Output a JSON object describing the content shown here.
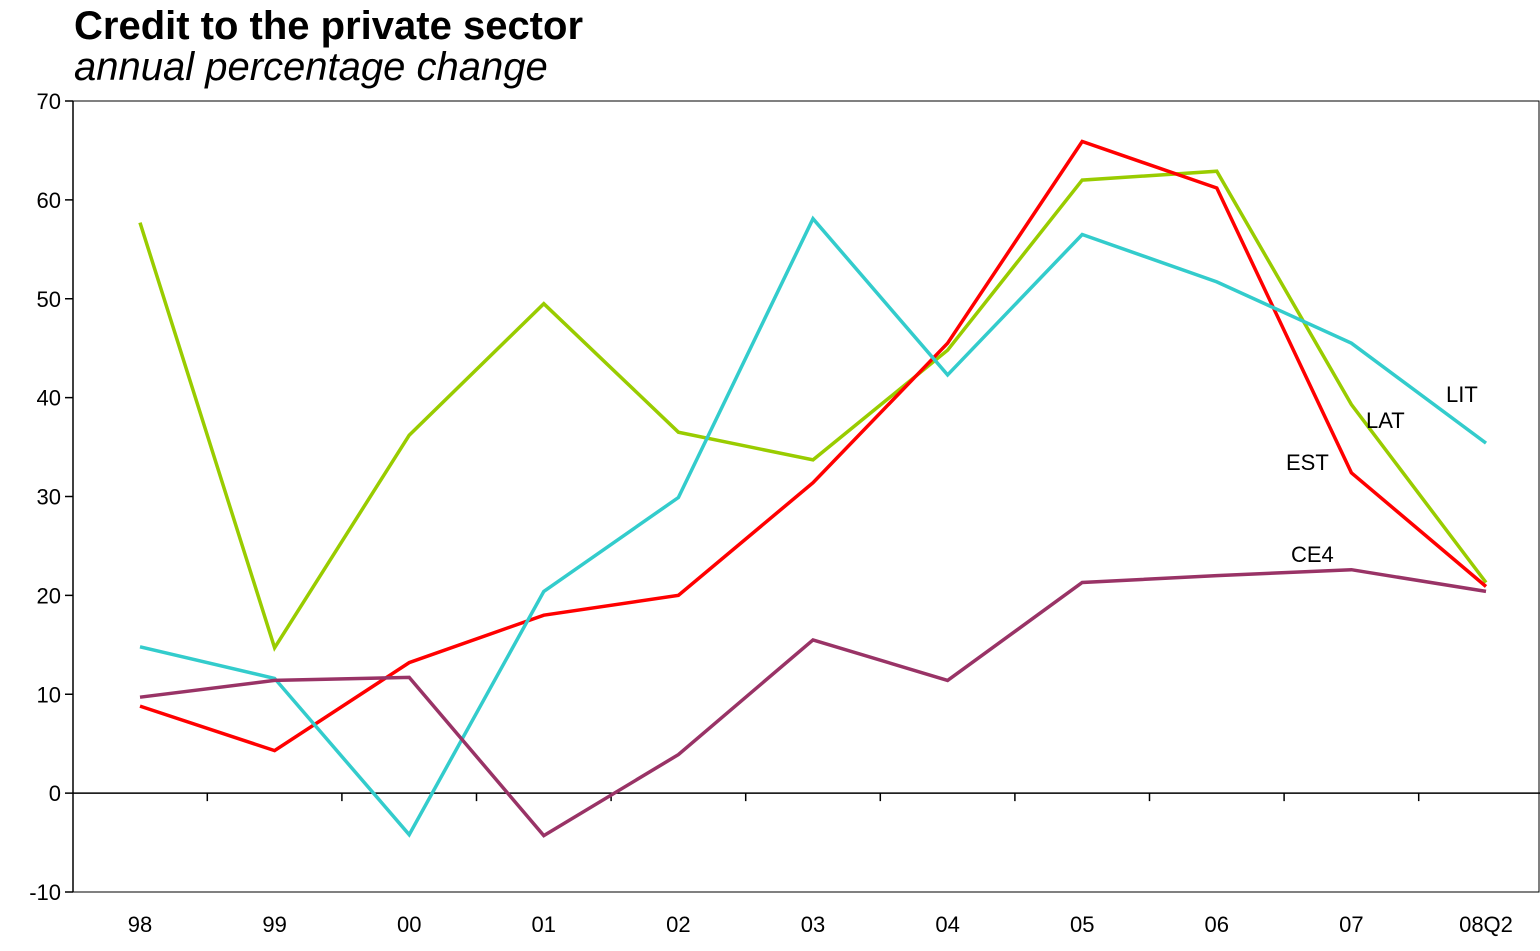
{
  "chart_data": {
    "type": "line",
    "title": "Credit to the private sector",
    "subtitle": "annual percentage change",
    "xlabel": "",
    "ylabel": "",
    "categories": [
      "98",
      "99",
      "00",
      "01",
      "02",
      "03",
      "04",
      "05",
      "06",
      "07",
      "08Q2"
    ],
    "ylim": [
      -10,
      70
    ],
    "yticks": [
      -10,
      0,
      10,
      20,
      30,
      40,
      50,
      60,
      70
    ],
    "grid": false,
    "legend": "none",
    "series": [
      {
        "name": "LAT",
        "color": "#99cc00",
        "values": [
          57.7,
          14.7,
          36.2,
          49.5,
          36.5,
          33.7,
          44.8,
          62.0,
          62.9,
          39.3,
          21.3
        ]
      },
      {
        "name": "EST",
        "color": "#ff0000",
        "values": [
          8.8,
          4.3,
          13.2,
          18.0,
          20.0,
          31.4,
          45.5,
          65.9,
          61.2,
          32.4,
          20.9
        ]
      },
      {
        "name": "LIT",
        "color": "#33cccc",
        "values": [
          14.8,
          11.6,
          -4.2,
          20.4,
          29.9,
          58.1,
          42.3,
          56.5,
          51.7,
          45.5,
          35.4
        ]
      },
      {
        "name": "CE4",
        "color": "#993366",
        "values": [
          9.7,
          11.4,
          11.7,
          -4.3,
          3.9,
          15.5,
          11.4,
          21.3,
          22.0,
          22.6,
          20.4
        ]
      }
    ],
    "annotations": [
      {
        "text": "LIT",
        "series": "LIT"
      },
      {
        "text": "LAT",
        "series": "LAT"
      },
      {
        "text": "EST",
        "series": "EST"
      },
      {
        "text": "CE4",
        "series": "CE4"
      }
    ]
  }
}
